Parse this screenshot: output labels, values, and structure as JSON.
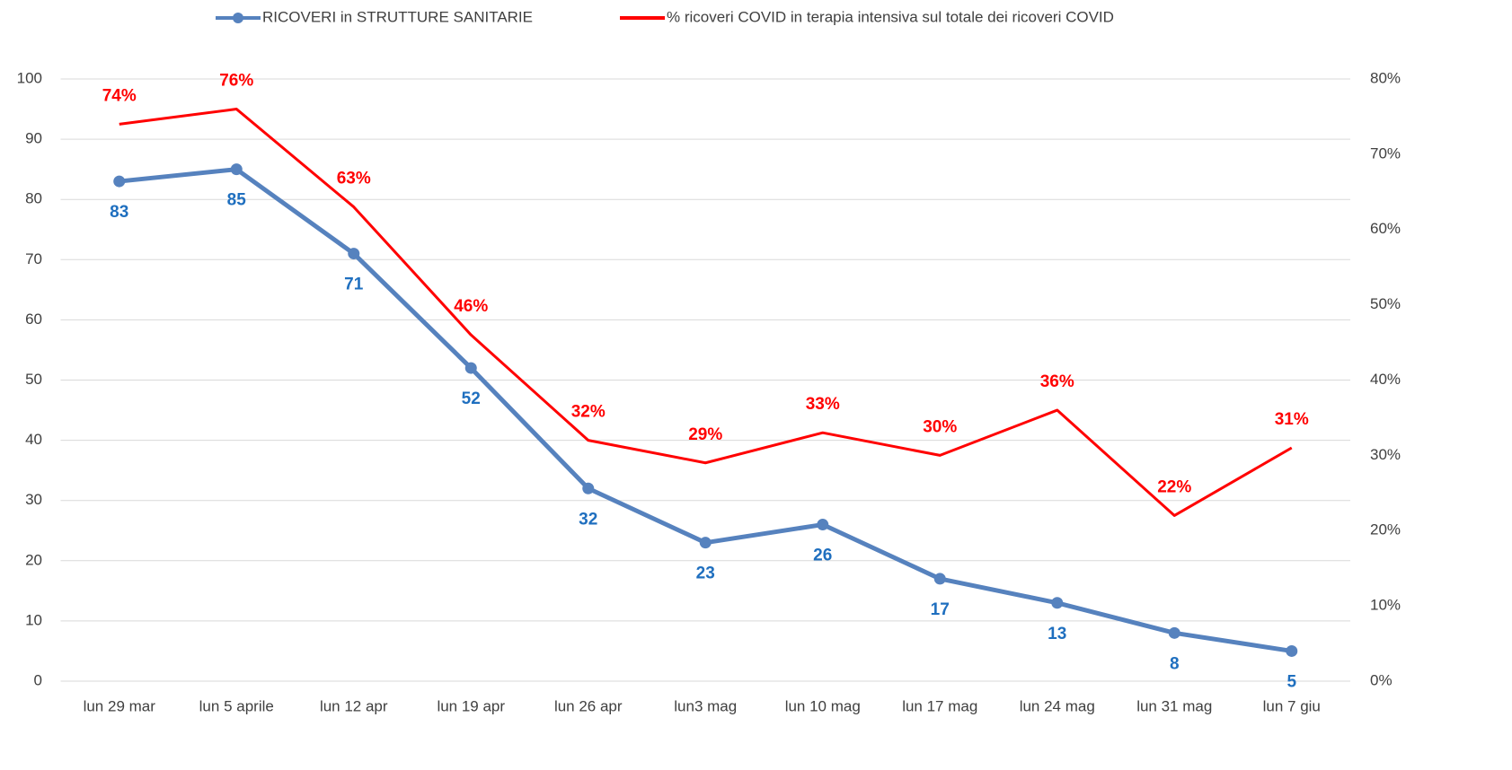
{
  "chart_data": {
    "type": "line",
    "categories": [
      "lun 29 mar",
      "lun 5 aprile",
      "lun 12 apr",
      "lun 19 apr",
      "lun 26 apr",
      "lun3 mag",
      "lun 10 mag",
      "lun 17 mag",
      "lun 24 mag",
      "lun 31 mag",
      "lun 7 giu"
    ],
    "series": [
      {
        "name": "RICOVERI in STRUTTURE SANITARIE",
        "color": "#5682be",
        "label_color": "#1f6fbf",
        "marker": true,
        "values": [
          83,
          85,
          71,
          52,
          32,
          23,
          26,
          17,
          13,
          8,
          5
        ]
      },
      {
        "name": "% ricoveri COVID in terapia intensiva sul totale dei ricoveri COVID",
        "color": "#ff0000",
        "label_color": "#ff0000",
        "marker": false,
        "axis": "y2",
        "values": [
          74,
          76,
          63,
          46,
          32,
          29,
          33,
          30,
          36,
          22,
          31
        ],
        "value_labels": [
          "74%",
          "76%",
          "63%",
          "46%",
          "32%",
          "29%",
          "33%",
          "30%",
          "36%",
          "22%",
          "31%"
        ]
      }
    ],
    "ylim": [
      0,
      100
    ],
    "yticks": [
      0,
      10,
      20,
      30,
      40,
      50,
      60,
      70,
      80,
      90,
      100
    ],
    "y2lim": [
      0,
      80
    ],
    "y2ticks": [
      {
        "value": 0,
        "label": "0%"
      },
      {
        "value": 10,
        "label": "10%"
      },
      {
        "value": 20,
        "label": "20%"
      },
      {
        "value": 30,
        "label": "30%"
      },
      {
        "value": 40,
        "label": "40%"
      },
      {
        "value": 50,
        "label": "50%"
      },
      {
        "value": 60,
        "label": "60%"
      },
      {
        "value": 70,
        "label": "70%"
      },
      {
        "value": 80,
        "label": "80%"
      }
    ],
    "grid": true,
    "legend": "top"
  }
}
